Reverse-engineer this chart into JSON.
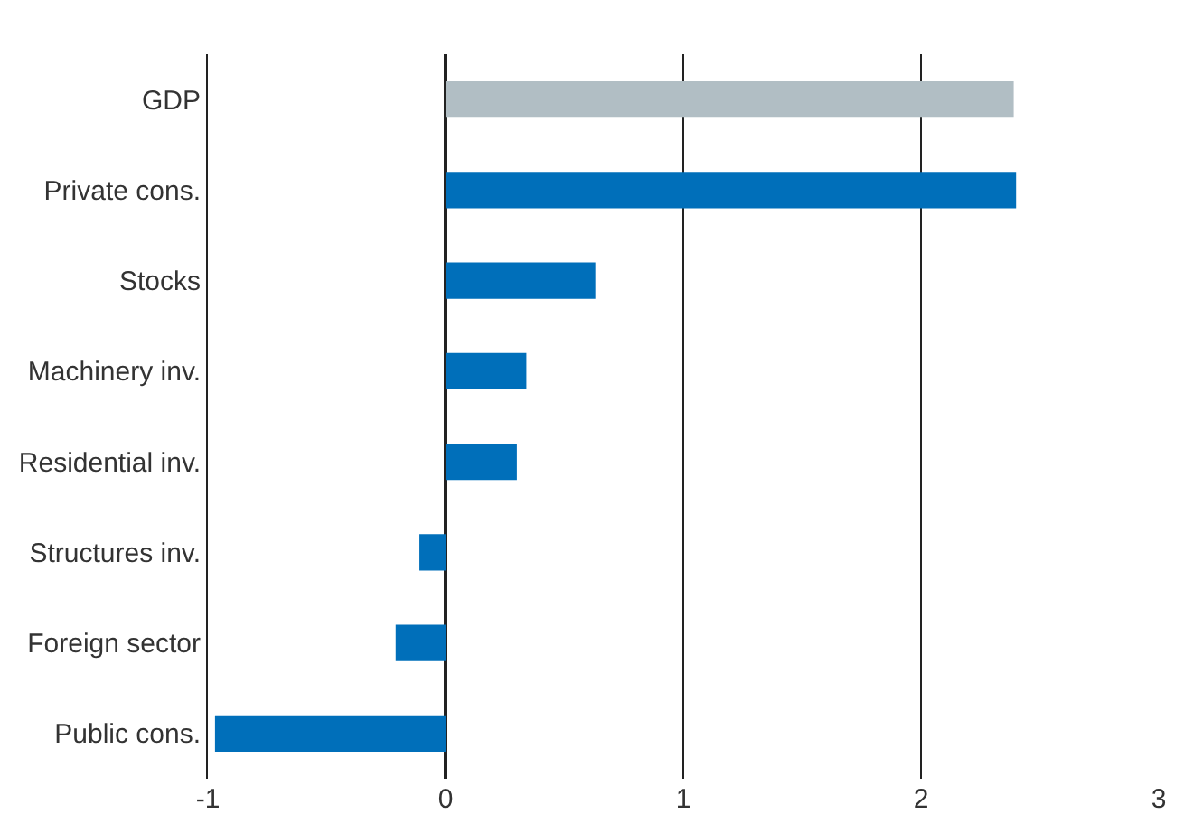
{
  "chart_data": {
    "type": "bar",
    "orientation": "horizontal",
    "categories": [
      "GDP",
      "Private cons.",
      "Stocks",
      "Machinery inv.",
      "Residential inv.",
      "Structures inv.",
      "Foreign sector",
      "Public cons."
    ],
    "values": [
      2.39,
      2.4,
      0.63,
      0.34,
      0.3,
      -0.11,
      -0.21,
      -0.97
    ],
    "colors": [
      "#b1bec4",
      "#006fba",
      "#006fba",
      "#006fba",
      "#006fba",
      "#006fba",
      "#006fba",
      "#006fba"
    ],
    "xlim": [
      -1,
      3
    ],
    "xticks": [
      -1,
      0,
      1,
      2,
      3
    ],
    "grid": "x"
  }
}
